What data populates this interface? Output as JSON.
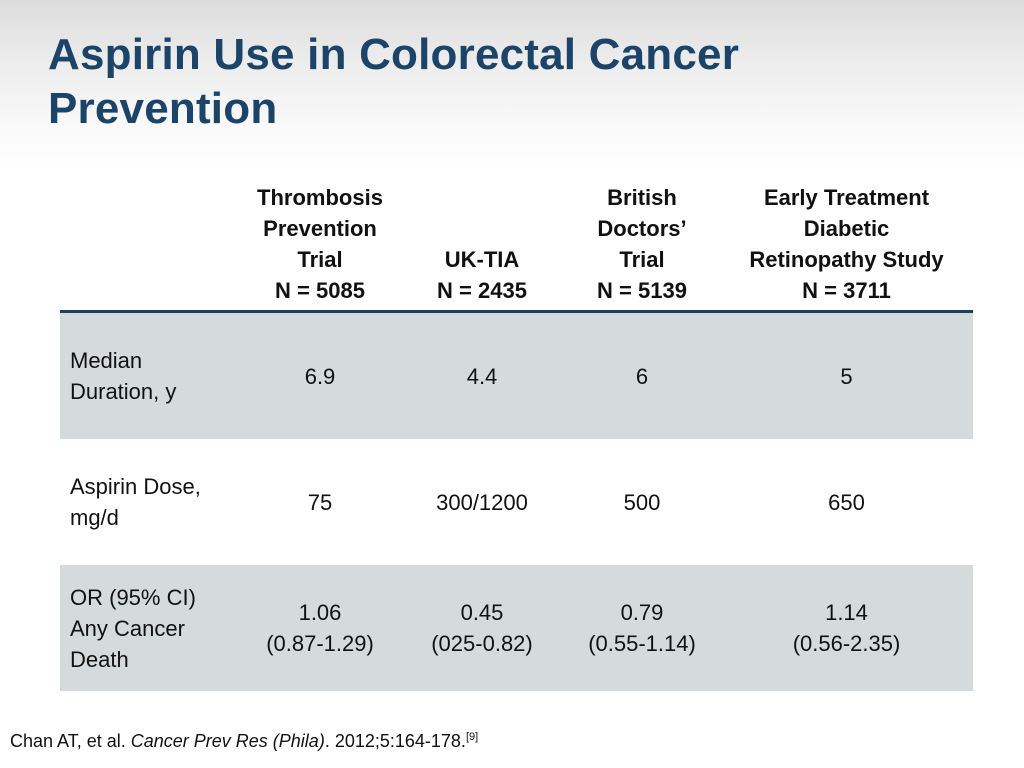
{
  "slide": {
    "title_lines": [
      "Aspirin Use in Colorectal Cancer",
      "Prevention"
    ]
  },
  "table": {
    "columns": [
      {
        "lines": [
          "Thrombosis",
          "Prevention",
          "Trial",
          "N = 5085"
        ]
      },
      {
        "lines": [
          "UK-TIA",
          "N = 2435"
        ]
      },
      {
        "lines": [
          "British",
          "Doctors’",
          "Trial",
          "N = 5139"
        ]
      },
      {
        "lines": [
          "Early Treatment",
          "Diabetic",
          "Retinopathy Study",
          "N = 3711"
        ]
      }
    ],
    "rows": [
      {
        "label_lines": [
          "Median",
          "Duration, y"
        ],
        "cells": [
          [
            "6.9"
          ],
          [
            "4.4"
          ],
          [
            "6"
          ],
          [
            "5"
          ]
        ]
      },
      {
        "label_lines": [
          "Aspirin Dose,",
          "mg/d"
        ],
        "cells": [
          [
            "75"
          ],
          [
            "300/1200"
          ],
          [
            "500"
          ],
          [
            "650"
          ]
        ]
      },
      {
        "label_lines": [
          "OR (95% CI)",
          "Any Cancer",
          "Death"
        ],
        "cells": [
          [
            "1.06",
            "(0.87-1.29)"
          ],
          [
            "0.45",
            "(025-0.82)"
          ],
          [
            "0.79",
            "(0.55-1.14)"
          ],
          [
            "1.14",
            "(0.56-2.35)"
          ]
        ]
      }
    ]
  },
  "footnote": {
    "authors": "Chan AT, et al. ",
    "journal": "Cancer Prev Res (Phila)",
    "citation": ". 2012;5:164-178.",
    "ref": "[9]"
  }
}
